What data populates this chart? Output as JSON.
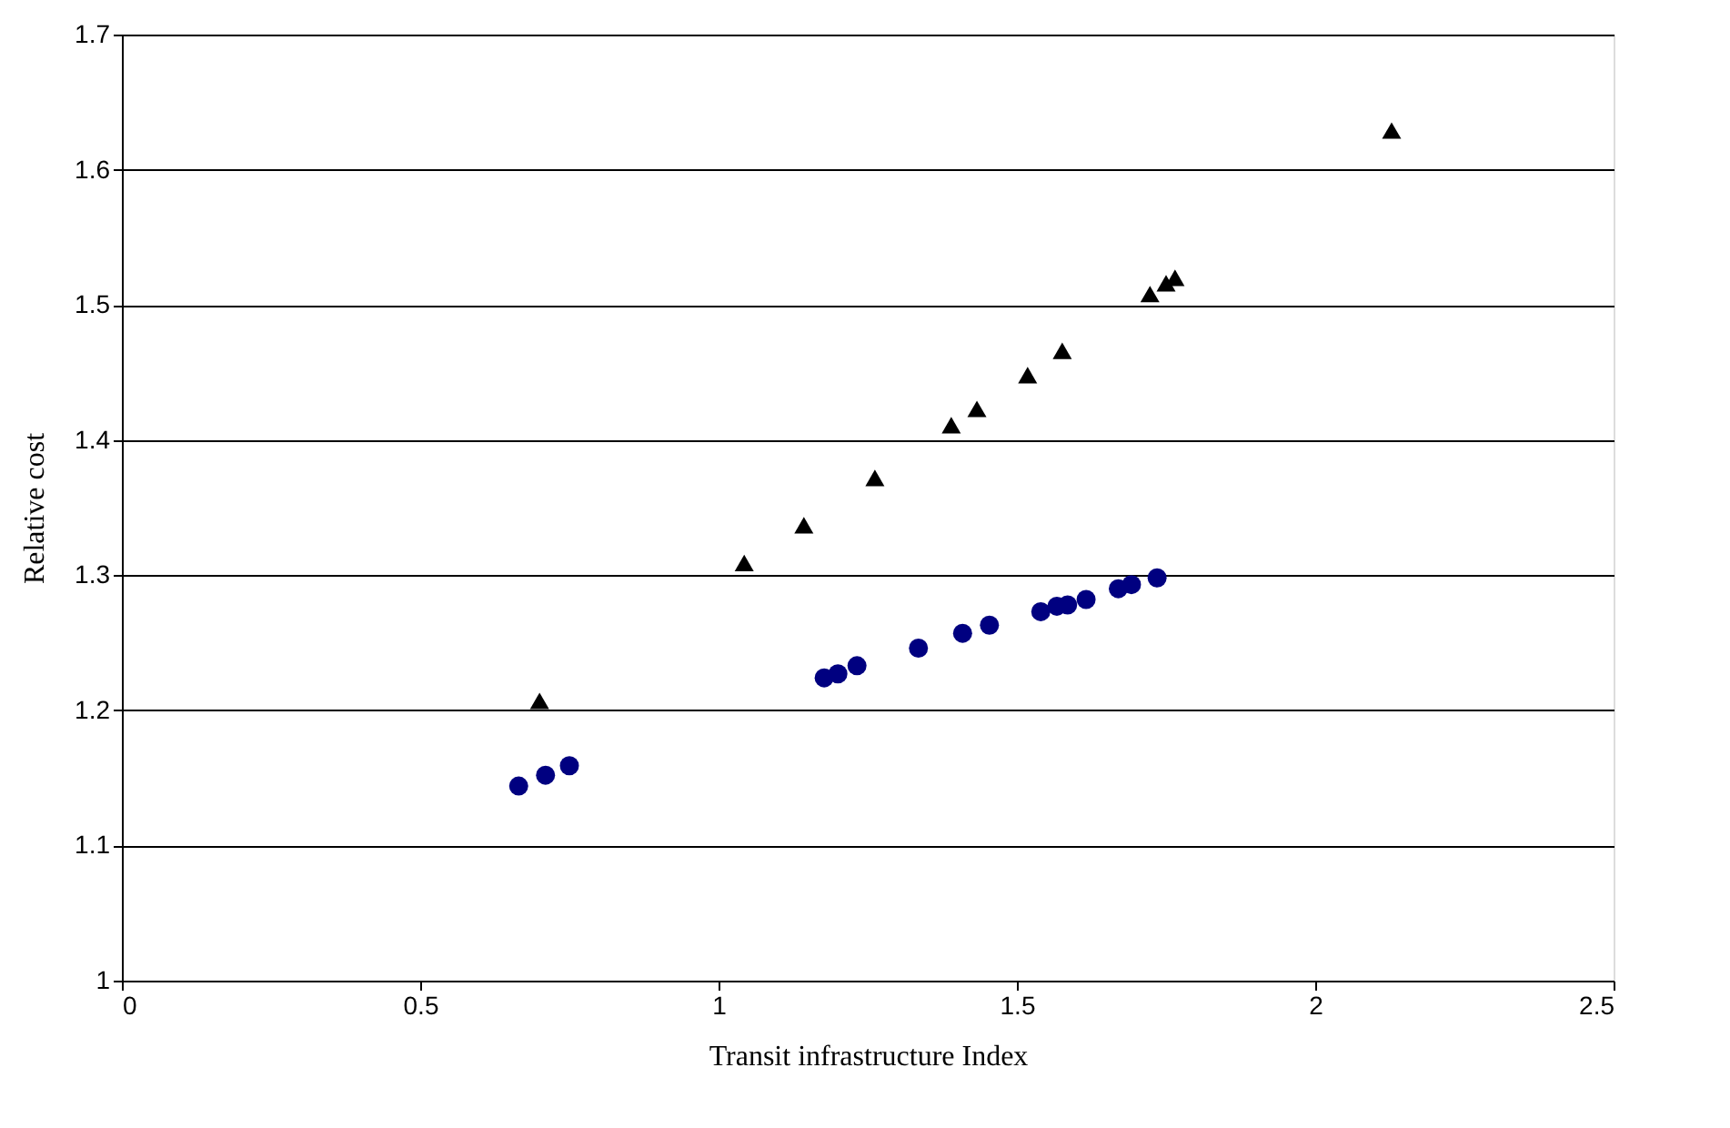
{
  "chart_data": {
    "type": "scatter",
    "xlabel": "Transit infrastructure Index",
    "ylabel": "Relative cost",
    "xlim": [
      0,
      2.5
    ],
    "xticks": [
      0,
      0.5,
      1,
      1.5,
      2,
      2.5
    ],
    "ylim": [
      1,
      1.7
    ],
    "yticks": [
      1,
      1.1,
      1.2,
      1.3,
      1.4,
      1.5,
      1.6,
      1.7
    ],
    "grid": "y",
    "series": [
      {
        "color": "#000000",
        "marker": "triangle",
        "x": [
          0.7,
          1.043,
          1.143,
          1.262,
          1.39,
          1.433,
          1.518,
          1.576,
          1.723,
          1.75,
          1.765,
          2.128
        ],
        "values": [
          1.207,
          1.309,
          1.337,
          1.372,
          1.411,
          1.423,
          1.448,
          1.466,
          1.508,
          1.516,
          1.52,
          1.629
        ]
      },
      {
        "color": "#000080",
        "marker": "circle",
        "x": [
          0.665,
          0.71,
          0.75,
          1.177,
          1.2,
          1.232,
          1.335,
          1.409,
          1.454,
          1.54,
          1.567,
          1.585,
          1.616,
          1.67,
          1.692,
          1.735
        ],
        "values": [
          1.144,
          1.152,
          1.159,
          1.224,
          1.227,
          1.233,
          1.246,
          1.257,
          1.263,
          1.273,
          1.277,
          1.278,
          1.282,
          1.29,
          1.293,
          1.298
        ]
      }
    ]
  }
}
